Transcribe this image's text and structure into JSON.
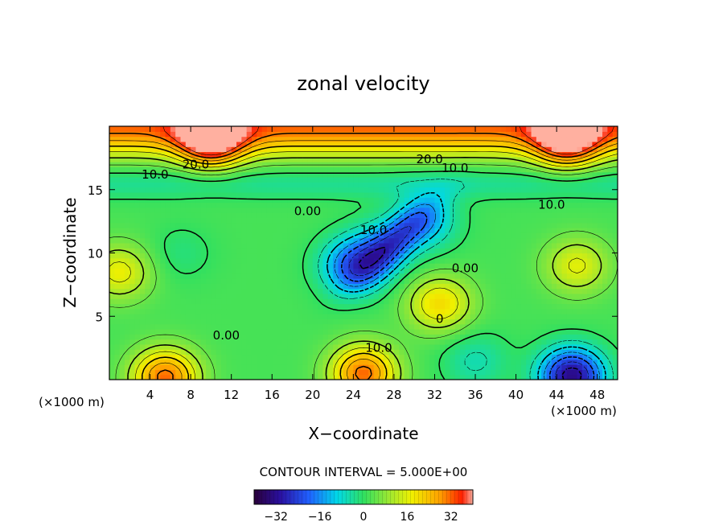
{
  "chart_data": {
    "type": "heatmap",
    "title": "zonal velocity",
    "xlabel": "X−coordinate",
    "ylabel": "Z−coordinate",
    "x_units_left": "(×1000 m)",
    "x_units_right": "(×1000 m)",
    "xlim": [
      0,
      50
    ],
    "ylim": [
      0,
      20
    ],
    "x_ticks": [
      4,
      8,
      12,
      16,
      20,
      24,
      28,
      32,
      36,
      40,
      44,
      48
    ],
    "y_ticks": [
      5,
      10,
      15
    ],
    "contour_interval_text": "CONTOUR INTERVAL = 5.000E+00",
    "contour_labels": [
      {
        "text": "20.0",
        "x": 8.5,
        "y": 17.0
      },
      {
        "text": "20.0",
        "x": 31.5,
        "y": 17.4
      },
      {
        "text": "10.0",
        "x": 4.5,
        "y": 16.2
      },
      {
        "text": "10.0",
        "x": 34.0,
        "y": 16.7
      },
      {
        "text": "0.00",
        "x": 19.5,
        "y": 13.3
      },
      {
        "text": "10.0",
        "x": 26.0,
        "y": 11.8
      },
      {
        "text": "0.00",
        "x": 35.0,
        "y": 8.8
      },
      {
        "text": "10.0",
        "x": 43.5,
        "y": 13.8
      },
      {
        "text": "0",
        "x": 32.5,
        "y": 4.8
      },
      {
        "text": "0.00",
        "x": 11.5,
        "y": 3.5
      },
      {
        "text": "10.0",
        "x": 26.5,
        "y": 2.5
      }
    ],
    "field_features": [
      {
        "x": 25,
        "y": 0.5,
        "value": 30
      },
      {
        "x": 5.5,
        "y": 0.2,
        "value": 30
      },
      {
        "x": 32.5,
        "y": 6.0,
        "value": 18
      },
      {
        "x": 46,
        "y": 9,
        "value": 14
      },
      {
        "x": 1,
        "y": 8.5,
        "value": 15
      },
      {
        "x": 45.5,
        "y": 0.3,
        "value": -35
      },
      {
        "x": 24,
        "y": 9,
        "value": -22
      },
      {
        "x": 31,
        "y": 12.5,
        "value": -14
      },
      {
        "x": 27,
        "y": 10.5,
        "value": -12
      },
      {
        "x": 36,
        "y": 1.5,
        "value": -8
      },
      {
        "x": 7,
        "y": 10,
        "value": -4
      },
      {
        "x": 10,
        "y": 19,
        "value": 32
      },
      {
        "x": 45,
        "y": 19,
        "value": 30
      }
    ],
    "colorbar": {
      "min": -40,
      "max": 40,
      "ticks": [
        -32,
        -16,
        0,
        16,
        32
      ],
      "tick_labels": [
        "−32",
        "−16",
        "0",
        "16",
        "32"
      ]
    }
  }
}
